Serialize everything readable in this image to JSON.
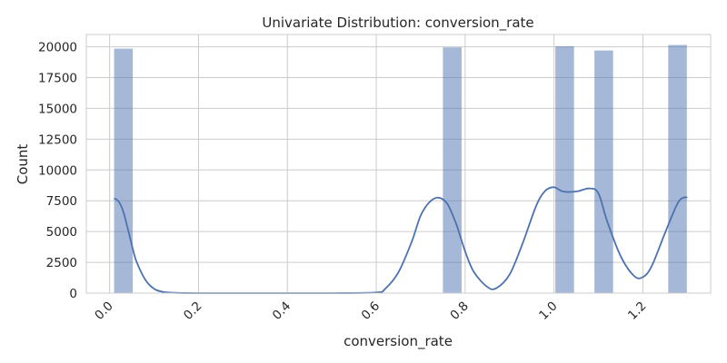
{
  "chart_data": {
    "type": "bar",
    "title": "Univariate Distribution: conversion_rate",
    "xlabel": "conversion_rate",
    "ylabel": "Count",
    "xlim": [
      -0.0525,
      1.3525
    ],
    "ylim": [
      0,
      21000
    ],
    "xticks": [
      0.0,
      0.2,
      0.4,
      0.6,
      0.8,
      1.0,
      1.2
    ],
    "xtick_labels": [
      "0.0",
      "0.2",
      "0.4",
      "0.6",
      "0.8",
      "1.0",
      "1.2"
    ],
    "xtick_rotation": 45,
    "yticks": [
      0,
      2500,
      5000,
      7500,
      10000,
      12500,
      15000,
      17500,
      20000
    ],
    "ytick_labels": [
      "0",
      "2500",
      "5000",
      "7500",
      "10000",
      "12500",
      "15000",
      "17500",
      "20000"
    ],
    "grid": true,
    "color": "#4c72b0",
    "bins": [
      {
        "x0": 0.01,
        "x1": 0.052,
        "count": 19850
      },
      {
        "x0": 0.75,
        "x1": 0.792,
        "count": 19950
      },
      {
        "x0": 1.003,
        "x1": 1.045,
        "count": 20050
      },
      {
        "x0": 1.091,
        "x1": 1.133,
        "count": 19700
      },
      {
        "x0": 1.257,
        "x1": 1.299,
        "count": 20150
      }
    ],
    "kde": {
      "x": [
        0.01,
        0.02,
        0.03,
        0.04,
        0.05,
        0.06,
        0.08,
        0.1,
        0.12,
        0.15,
        0.2,
        0.3,
        0.4,
        0.5,
        0.6,
        0.62,
        0.65,
        0.68,
        0.7,
        0.72,
        0.74,
        0.76,
        0.78,
        0.8,
        0.82,
        0.85,
        0.87,
        0.9,
        0.93,
        0.96,
        0.98,
        1.0,
        1.02,
        1.05,
        1.08,
        1.1,
        1.12,
        1.15,
        1.18,
        1.2,
        1.22,
        1.25,
        1.28,
        1.3
      ],
      "y": [
        7700,
        7450,
        6700,
        5350,
        3900,
        2600,
        1100,
        350,
        100,
        20,
        0,
        0,
        0,
        0,
        50,
        350,
        1700,
        4200,
        6300,
        7400,
        7750,
        7250,
        5600,
        3400,
        1700,
        500,
        400,
        1500,
        4100,
        7100,
        8300,
        8600,
        8250,
        8250,
        8500,
        8100,
        5800,
        3000,
        1400,
        1300,
        2200,
        4900,
        7400,
        7800
      ]
    }
  }
}
